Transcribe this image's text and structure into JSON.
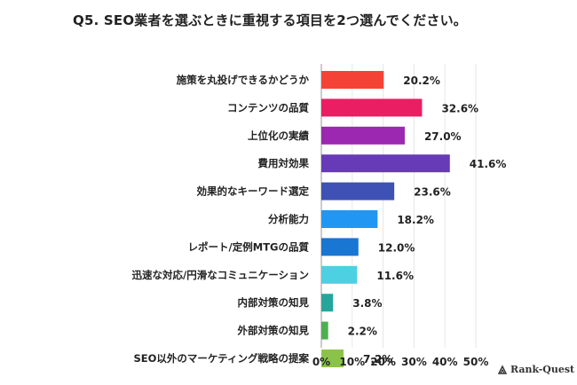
{
  "title": "Q5. SEO業者を選ぶときに重視する項目を2つ選んでください。",
  "brand": "Rank-Quest",
  "chart_data": {
    "type": "bar",
    "orientation": "horizontal",
    "categories": [
      "施策を丸投げできるかどうか",
      "コンテンツの品質",
      "上位化の実績",
      "費用対効果",
      "効果的なキーワード選定",
      "分析能力",
      "レポート/定例MTGの品質",
      "迅速な対応/円滑なコミュニケーション",
      "内部対策の知見",
      "外部対策の知見",
      "SEO以外のマーケティング戦略の提案"
    ],
    "values": [
      20.2,
      32.6,
      27.0,
      41.6,
      23.6,
      18.2,
      12.0,
      11.6,
      3.8,
      2.2,
      7.2
    ],
    "value_labels": [
      "20.2%",
      "32.6%",
      "27.0%",
      "41.6%",
      "23.6%",
      "18.2%",
      "12.0%",
      "11.6%",
      "3.8%",
      "2.2%",
      "7.2%"
    ],
    "colors": [
      "#f44336",
      "#e91e63",
      "#9c27b0",
      "#673ab7",
      "#3f51b5",
      "#2196f3",
      "#1976d2",
      "#4dd0e1",
      "#26a69a",
      "#4caf50",
      "#8bc34a"
    ],
    "xlim": [
      0,
      50
    ],
    "ticks": [
      0,
      10,
      20,
      30,
      40,
      50
    ],
    "tick_labels": [
      "0%",
      "10%",
      "20%",
      "30%",
      "40%",
      "50%"
    ],
    "grid": true,
    "legend": "none"
  }
}
